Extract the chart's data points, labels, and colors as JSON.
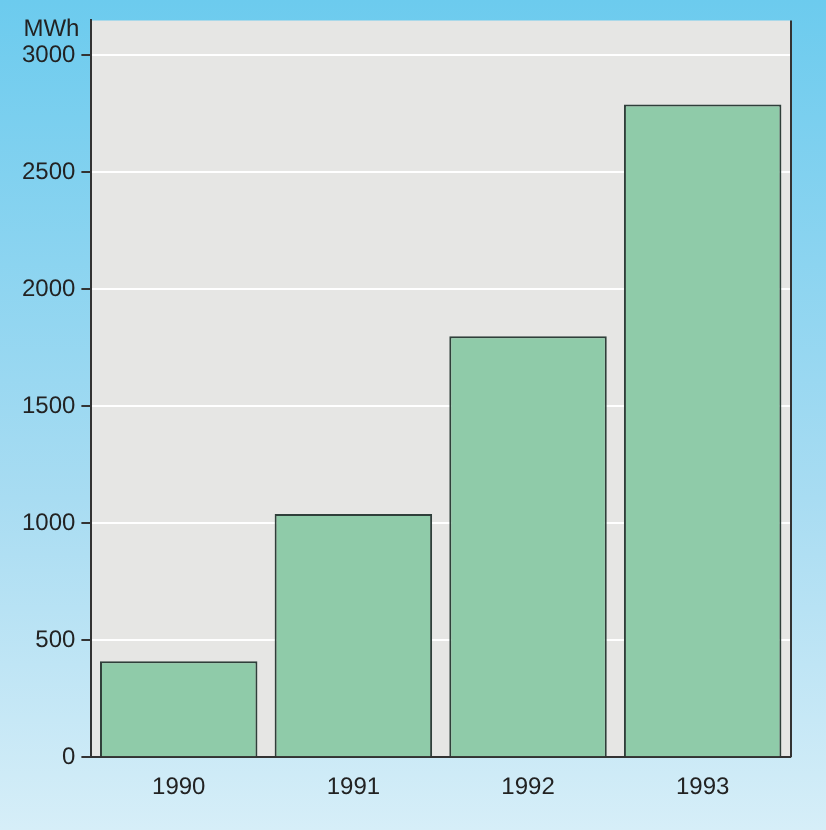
{
  "chart_data": {
    "type": "bar",
    "ylabel": "MWh",
    "categories": [
      "1990",
      "1991",
      "1992",
      "1993"
    ],
    "values": [
      410,
      1040,
      1800,
      2790
    ],
    "color": "#8fcba9",
    "ylim": [
      0,
      3150
    ],
    "yticks": [
      0,
      500,
      1000,
      1500,
      2000,
      2500,
      3000
    ],
    "grid": "y",
    "legend": false
  }
}
